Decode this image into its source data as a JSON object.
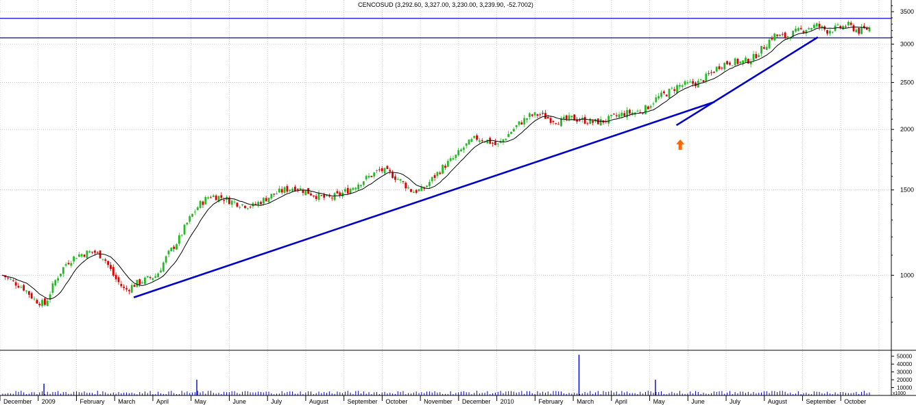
{
  "chart_data": {
    "type": "candlestick",
    "title": "CENCOSUD (3,292.60, 3,327.00, 3,230.00, 3,239.90, -52.7002)",
    "scale": "log",
    "ylim": [
      700,
      3700
    ],
    "y_ticks": [
      1000,
      1500,
      2000,
      2500,
      3000,
      3500
    ],
    "x_month_labels": [
      "December",
      "2009",
      "February",
      "March",
      "April",
      "May",
      "June",
      "July",
      "August",
      "September",
      "October",
      "November",
      "December",
      "2010",
      "February",
      "March",
      "April",
      "May",
      "June",
      "July",
      "August",
      "September",
      "October"
    ],
    "anchors": [
      [
        0,
        1000
      ],
      [
        4,
        940
      ],
      [
        6,
        890
      ],
      [
        8,
        870
      ],
      [
        10,
        980
      ],
      [
        12,
        1060
      ],
      [
        14,
        1100
      ],
      [
        17,
        1120
      ],
      [
        19,
        1090
      ],
      [
        21,
        990
      ],
      [
        23,
        930
      ],
      [
        25,
        960
      ],
      [
        27,
        980
      ],
      [
        29,
        1000
      ],
      [
        31,
        1100
      ],
      [
        33,
        1180
      ],
      [
        35,
        1300
      ],
      [
        37,
        1400
      ],
      [
        39,
        1460
      ],
      [
        41,
        1450
      ],
      [
        43,
        1420
      ],
      [
        45,
        1400
      ],
      [
        47,
        1390
      ],
      [
        49,
        1430
      ],
      [
        51,
        1470
      ],
      [
        53,
        1500
      ],
      [
        55,
        1520
      ],
      [
        57,
        1490
      ],
      [
        59,
        1460
      ],
      [
        61,
        1440
      ],
      [
        63,
        1460
      ],
      [
        65,
        1500
      ],
      [
        67,
        1550
      ],
      [
        69,
        1600
      ],
      [
        71,
        1650
      ],
      [
        73,
        1620
      ],
      [
        75,
        1560
      ],
      [
        77,
        1490
      ],
      [
        79,
        1500
      ],
      [
        81,
        1590
      ],
      [
        83,
        1680
      ],
      [
        85,
        1750
      ],
      [
        87,
        1850
      ],
      [
        89,
        1920
      ],
      [
        91,
        1900
      ],
      [
        93,
        1850
      ],
      [
        95,
        1950
      ],
      [
        97,
        2050
      ],
      [
        99,
        2130
      ],
      [
        101,
        2150
      ],
      [
        103,
        2100
      ],
      [
        105,
        2080
      ],
      [
        107,
        2110
      ],
      [
        109,
        2090
      ],
      [
        111,
        2070
      ],
      [
        113,
        2080
      ],
      [
        115,
        2120
      ],
      [
        117,
        2160
      ],
      [
        119,
        2170
      ],
      [
        121,
        2210
      ],
      [
        123,
        2320
      ],
      [
        125,
        2380
      ],
      [
        127,
        2460
      ],
      [
        129,
        2480
      ],
      [
        131,
        2500
      ],
      [
        133,
        2600
      ],
      [
        135,
        2720
      ],
      [
        137,
        2760
      ],
      [
        139,
        2750
      ],
      [
        141,
        2800
      ],
      [
        143,
        2950
      ],
      [
        145,
        3130
      ],
      [
        147,
        3100
      ],
      [
        149,
        3170
      ],
      [
        151,
        3230
      ],
      [
        153,
        3280
      ],
      [
        155,
        3200
      ],
      [
        157,
        3240
      ],
      [
        159,
        3280
      ],
      [
        161,
        3190
      ],
      [
        163,
        3240
      ]
    ],
    "moving_average": true,
    "trendlines": [
      {
        "from": [
          "March 2009",
          900
        ],
        "to": [
          "June 2010",
          2280
        ],
        "color": "#0000cc"
      },
      {
        "from": [
          "May 2010",
          2040
        ],
        "to": [
          "September 2010",
          3100
        ],
        "color": "#0000cc"
      }
    ],
    "resistance_lines": [
      3390,
      3090
    ],
    "annotation": {
      "type": "arrow-up",
      "at": [
        "May 2010",
        1870
      ],
      "color": "#ff6600"
    },
    "volume": {
      "y_ticks": [
        "50000",
        "40000",
        "30000",
        "20000",
        "10000"
      ],
      "scale_label": "x1000",
      "spikes": [
        [
          "March 2010",
          52000
        ],
        [
          "May 2010",
          20000
        ],
        [
          "May 2009",
          20000
        ],
        [
          "January 2009",
          15000
        ]
      ]
    },
    "colors": {
      "up": "#22bb22",
      "down": "#dd0000",
      "ma": "#000000",
      "line": "#0000cc",
      "arrow": "#ff6600",
      "volume": "#0000cc",
      "grid": "#bfbfbf"
    }
  }
}
